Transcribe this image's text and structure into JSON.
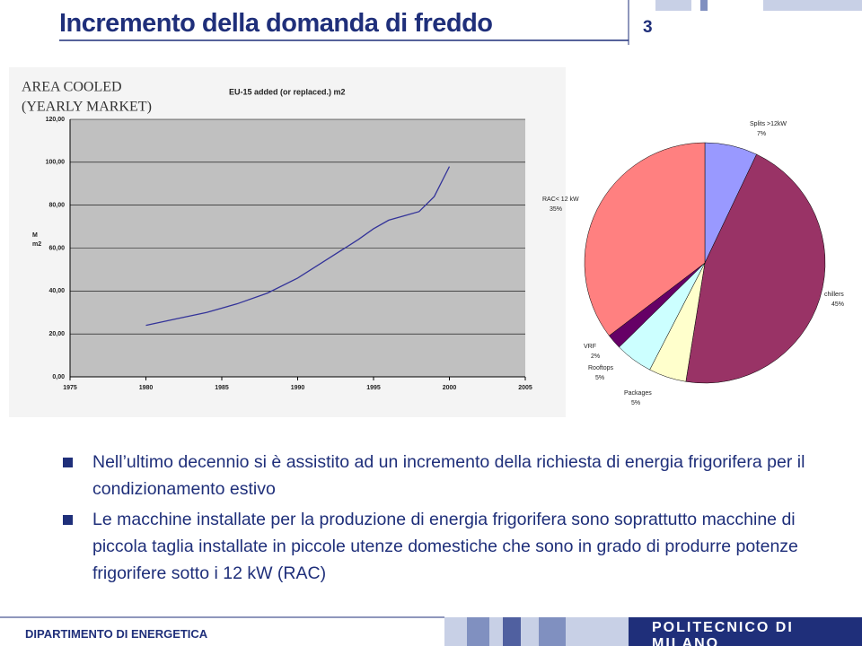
{
  "header": {
    "title": "Incremento della domanda di freddo",
    "page": "3"
  },
  "chart_data": [
    {
      "type": "line",
      "title": "EU-15 added (or replaced.) m2",
      "overlay": [
        "AREA COOLED",
        "(YEARLY MARKET)"
      ],
      "y_label": [
        "M",
        "m2"
      ],
      "x": [
        1980,
        1982,
        1984,
        1986,
        1988,
        1990,
        1992,
        1994,
        1995,
        1996,
        1997,
        1998,
        1999,
        2000
      ],
      "series": [
        {
          "name": "EU-15",
          "color": "#333399",
          "values": [
            24,
            27,
            30,
            34,
            39,
            46,
            55,
            64,
            69,
            73,
            75,
            77,
            84,
            98
          ]
        }
      ],
      "xlim": [
        1975,
        2005
      ],
      "xticks": [
        1975,
        1980,
        1985,
        1990,
        1995,
        2000,
        2005
      ],
      "ylim": [
        0,
        120
      ],
      "yticks": [
        {
          "value": 0,
          "label": "0,00"
        },
        {
          "value": 20,
          "label": "20,00"
        },
        {
          "value": 40,
          "label": "40,00"
        },
        {
          "value": 60,
          "label": "60,00"
        },
        {
          "value": 80,
          "label": "80,00"
        },
        {
          "value": 100,
          "label": "100,00"
        },
        {
          "value": 120,
          "label": "120,00"
        }
      ],
      "grid": true,
      "plot_color": "#c0c0c0"
    },
    {
      "type": "pie",
      "categories": [
        "Splits >12kW",
        "chillers",
        "Packages",
        "Rooftops",
        "VRF",
        "RAC< 12 kW"
      ],
      "values": [
        7,
        45,
        5,
        5,
        2,
        35
      ],
      "value_labels": [
        "7%",
        "45%",
        "5%",
        "5%",
        "2%",
        "35%"
      ],
      "colors": [
        "#9999ff",
        "#993366",
        "#ffffcc",
        "#ccffff",
        "#660066",
        "#ff8080"
      ]
    }
  ],
  "bullets": [
    "Nell’ultimo decennio si è assistito ad un incremento della richiesta di energia frigorifera per il condizionamento estivo",
    "Le macchine installate per la produzione di energia frigorifera sono soprattutto macchine di piccola taglia installate in piccole utenze domestiche che sono in grado di produrre potenze frigorifere sotto i 12 kW (RAC)"
  ],
  "footer": {
    "left": "DIPARTIMENTO DI ENERGETICA",
    "right": "POLITECNICO DI MILANO"
  }
}
